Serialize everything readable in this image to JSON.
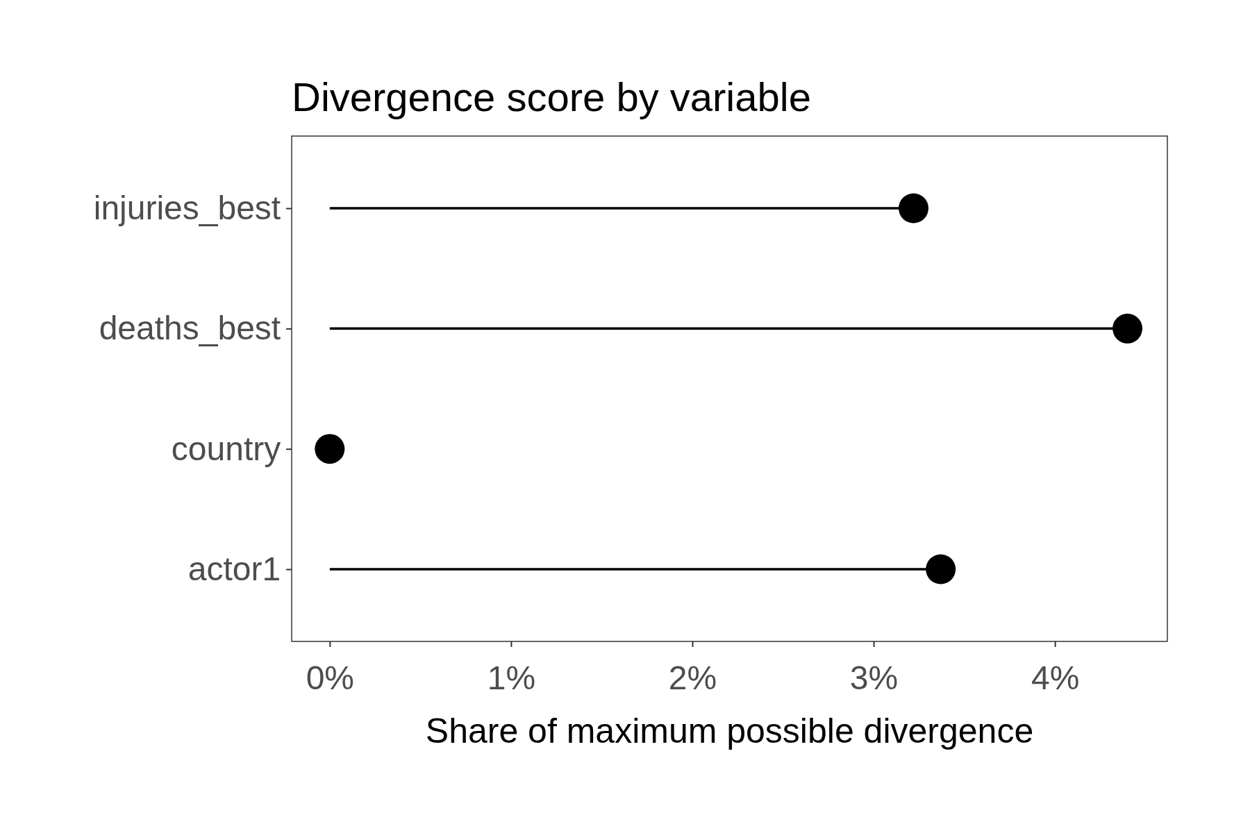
{
  "chart_data": {
    "type": "lollipop",
    "title": "Divergence score by variable",
    "xlabel": "Share of maximum possible divergence",
    "orientation": "horizontal",
    "categories": [
      "injuries_best",
      "deaths_best",
      "country",
      "actor1"
    ],
    "values": [
      3.22,
      4.4,
      0,
      3.37
    ],
    "color": "#000000",
    "marker": "circle",
    "xlim": [
      -0.21,
      4.62
    ],
    "xticks": [
      {
        "value": 0,
        "label": "0%"
      },
      {
        "value": 1,
        "label": "1%"
      },
      {
        "value": 2,
        "label": "2%"
      },
      {
        "value": 3,
        "label": "3%"
      },
      {
        "value": 4,
        "label": "4%"
      }
    ]
  }
}
